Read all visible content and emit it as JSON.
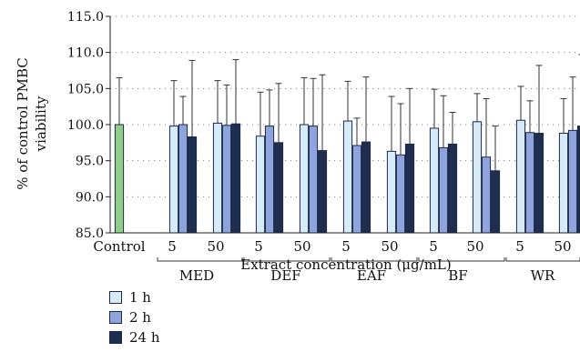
{
  "chart_data": {
    "type": "bar",
    "ylabel": "% of control PMBC viability",
    "xlabel": "Extract concentration (μg/mL)",
    "ylim": [
      85,
      115
    ],
    "yticks": [
      "85.0",
      "90.0",
      "95.0",
      "100.0",
      "105.0",
      "110.0",
      "115.0"
    ],
    "grid": "dotted horizontal",
    "legend_position": "bottom-left",
    "control": {
      "label": "Control",
      "value": 100.0,
      "error": 6.5,
      "color": "#8fcf87"
    },
    "categories": [
      {
        "label": "5",
        "group": "MED"
      },
      {
        "label": "50",
        "group": "MED"
      },
      {
        "label": "5",
        "group": "DEF"
      },
      {
        "label": "50",
        "group": "DEF"
      },
      {
        "label": "5",
        "group": "EAF"
      },
      {
        "label": "50",
        "group": "EAF"
      },
      {
        "label": "5",
        "group": "BF"
      },
      {
        "label": "50",
        "group": "BF"
      },
      {
        "label": "5",
        "group": "WR"
      },
      {
        "label": "50",
        "group": "WR"
      }
    ],
    "groups": [
      "MED",
      "DEF",
      "EAF",
      "BF",
      "WR"
    ],
    "series": [
      {
        "name": "1 h",
        "color": "#d6eaf8",
        "values": [
          99.8,
          100.2,
          98.4,
          100.0,
          100.5,
          96.3,
          99.5,
          100.4,
          100.6,
          98.8
        ],
        "errors": [
          6.3,
          5.9,
          6.1,
          6.5,
          5.5,
          7.6,
          5.4,
          3.9,
          4.7,
          4.8
        ]
      },
      {
        "name": "2 h",
        "color": "#8fa4dc",
        "values": [
          100.0,
          99.9,
          99.8,
          99.8,
          97.1,
          95.8,
          96.8,
          95.5,
          98.9,
          99.2
        ],
        "errors": [
          3.9,
          5.6,
          5.0,
          6.6,
          3.8,
          7.1,
          7.2,
          8.1,
          4.4,
          7.4
        ]
      },
      {
        "name": "24 h",
        "color": "#1f2d4f",
        "values": [
          98.3,
          100.1,
          97.5,
          96.4,
          97.6,
          97.3,
          97.3,
          93.6,
          98.8,
          99.8
        ],
        "errors": [
          10.6,
          8.9,
          8.2,
          10.5,
          9.0,
          7.7,
          4.4,
          6.2,
          9.4,
          9.9
        ]
      }
    ]
  }
}
